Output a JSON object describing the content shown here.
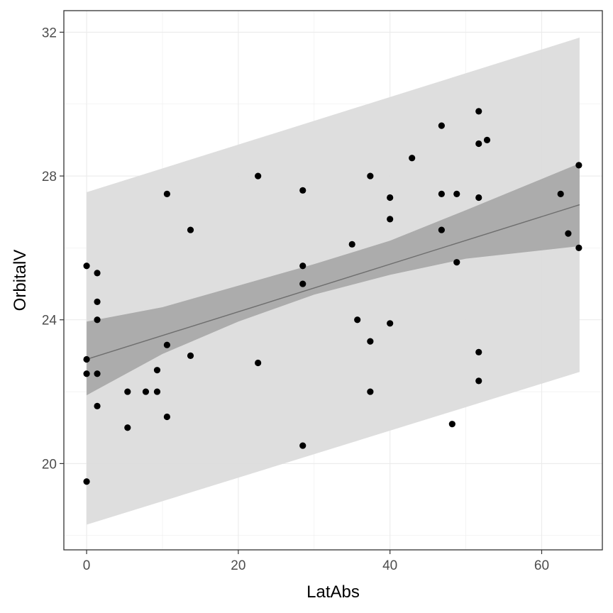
{
  "chart_data": {
    "type": "scatter",
    "title": "",
    "xlabel": "LatAbs",
    "ylabel": "OrbitalV",
    "xlim": [
      -3,
      68
    ],
    "ylim": [
      17.6,
      32.6
    ],
    "x_ticks": [
      0,
      20,
      40,
      60
    ],
    "y_ticks": [
      20,
      24,
      28,
      32
    ],
    "x_tick_labels": [
      "0",
      "20",
      "40",
      "60"
    ],
    "y_tick_labels": [
      "20",
      "24",
      "28",
      "32"
    ],
    "grid": true,
    "legend": "none",
    "points": [
      {
        "x": 0,
        "y": 25.5
      },
      {
        "x": 0,
        "y": 22.9
      },
      {
        "x": 0,
        "y": 22.5
      },
      {
        "x": 0,
        "y": 19.5
      },
      {
        "x": 1.4,
        "y": 25.3
      },
      {
        "x": 1.4,
        "y": 24.5
      },
      {
        "x": 1.4,
        "y": 24.0
      },
      {
        "x": 1.4,
        "y": 22.5
      },
      {
        "x": 1.4,
        "y": 21.6
      },
      {
        "x": 5.4,
        "y": 22.0
      },
      {
        "x": 5.4,
        "y": 21.0
      },
      {
        "x": 7.8,
        "y": 22.0
      },
      {
        "x": 9.3,
        "y": 22.6
      },
      {
        "x": 9.3,
        "y": 22.0
      },
      {
        "x": 10.6,
        "y": 27.5
      },
      {
        "x": 10.6,
        "y": 23.3
      },
      {
        "x": 10.6,
        "y": 21.3
      },
      {
        "x": 13.7,
        "y": 26.5
      },
      {
        "x": 13.7,
        "y": 23.0
      },
      {
        "x": 22.6,
        "y": 28.0
      },
      {
        "x": 22.6,
        "y": 22.8
      },
      {
        "x": 28.5,
        "y": 27.6
      },
      {
        "x": 28.5,
        "y": 25.5
      },
      {
        "x": 28.5,
        "y": 25.0
      },
      {
        "x": 28.5,
        "y": 20.5
      },
      {
        "x": 35.0,
        "y": 26.1
      },
      {
        "x": 35.7,
        "y": 24.0
      },
      {
        "x": 37.4,
        "y": 28.0
      },
      {
        "x": 37.4,
        "y": 23.4
      },
      {
        "x": 37.4,
        "y": 22.0
      },
      {
        "x": 40.0,
        "y": 27.4
      },
      {
        "x": 40.0,
        "y": 26.8
      },
      {
        "x": 40.0,
        "y": 23.9
      },
      {
        "x": 42.9,
        "y": 28.5
      },
      {
        "x": 46.8,
        "y": 29.4
      },
      {
        "x": 46.8,
        "y": 27.5
      },
      {
        "x": 46.8,
        "y": 26.5
      },
      {
        "x": 48.2,
        "y": 21.1
      },
      {
        "x": 48.8,
        "y": 27.5
      },
      {
        "x": 48.8,
        "y": 25.6
      },
      {
        "x": 51.7,
        "y": 29.8
      },
      {
        "x": 51.7,
        "y": 28.9
      },
      {
        "x": 51.7,
        "y": 27.4
      },
      {
        "x": 51.7,
        "y": 23.1
      },
      {
        "x": 51.7,
        "y": 22.3
      },
      {
        "x": 52.8,
        "y": 29.0
      },
      {
        "x": 62.5,
        "y": 27.5
      },
      {
        "x": 63.5,
        "y": 26.4
      },
      {
        "x": 64.9,
        "y": 28.3
      },
      {
        "x": 64.9,
        "y": 26.0
      }
    ],
    "fit_line": {
      "x": [
        0,
        65
      ],
      "y": [
        22.9,
        27.2
      ]
    },
    "confidence_band": {
      "x": [
        0,
        10,
        20,
        30,
        40,
        50,
        65
      ],
      "lower": [
        21.9,
        23.05,
        23.95,
        24.7,
        25.25,
        25.7,
        26.05
      ],
      "upper": [
        23.95,
        24.35,
        24.95,
        25.55,
        26.2,
        27.05,
        28.35
      ]
    },
    "prediction_band": {
      "x": [
        0,
        65
      ],
      "lower": [
        18.3,
        22.55
      ],
      "upper": [
        27.55,
        31.85
      ]
    },
    "colors": {
      "points": "#000000",
      "fit_line": "#6e6e6e",
      "confidence_band": "#a9a9a9",
      "prediction_band": "#dcdcdc",
      "grid": "#ebebeb",
      "panel_border": "#333333"
    }
  }
}
